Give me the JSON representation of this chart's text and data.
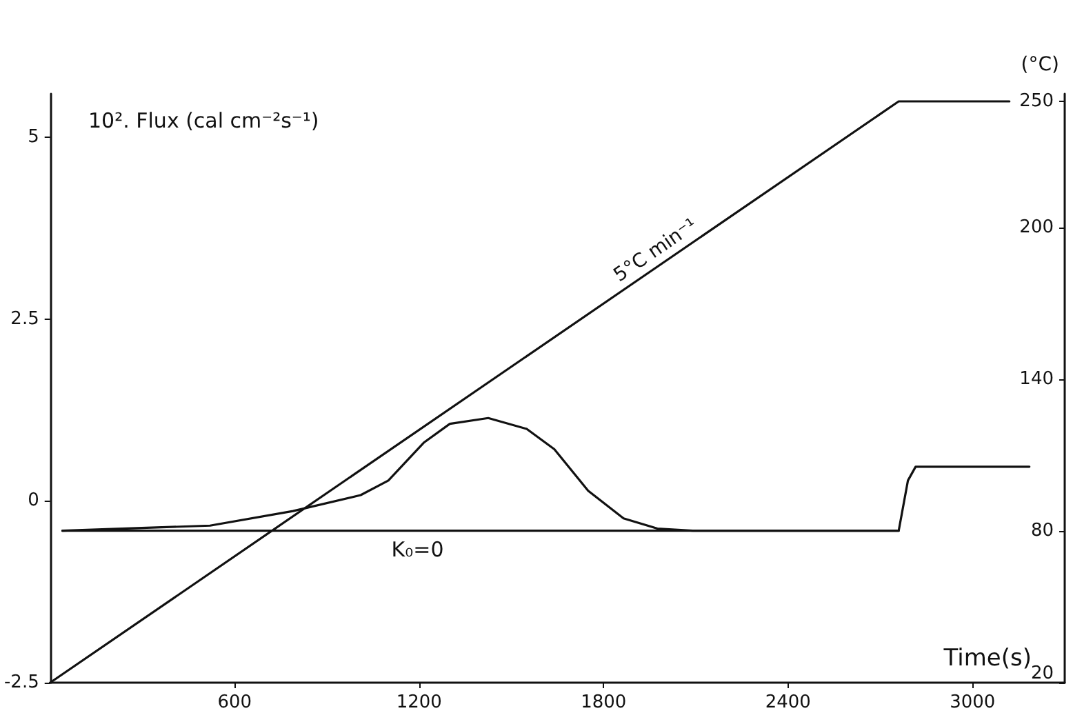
{
  "chart_data": {
    "type": "line",
    "xlabel": "Time(s)",
    "ylabel": "10². Flux (cal cm⁻²s⁻¹)",
    "y2label": "(°C)",
    "xlim": [
      0,
      3300
    ],
    "xticks": [
      600,
      1200,
      1800,
      2400,
      3000
    ],
    "ylim": [
      -2.5,
      5.6
    ],
    "yticks": [
      -2.5,
      0,
      2.5,
      5
    ],
    "y2lim": [
      20,
      253
    ],
    "y2ticks": [
      20,
      80,
      140,
      200,
      250
    ],
    "marker": "none",
    "line_style": "solid",
    "grid": false,
    "series": [
      {
        "color": "#111111",
        "x": [
          40,
          520,
          790,
          1010,
          1100,
          1215,
          1300,
          1425,
          1550,
          1640,
          1750,
          1865,
          1975,
          2090,
          2760,
          2790,
          2815,
          3185
        ],
        "values": [
          -0.41,
          -0.34,
          -0.14,
          0.08,
          0.28,
          0.8,
          1.06,
          1.14,
          0.99,
          0.71,
          0.14,
          -0.24,
          -0.38,
          -0.41,
          -0.41,
          0.28,
          0.47,
          0.47
        ]
      },
      {
        "color": "#111111",
        "x": [
          40,
          2760
        ],
        "values": [
          -0.41,
          -0.41
        ]
      },
      {
        "color": "#111111",
        "axis": "y2",
        "x": [
          0,
          2760,
          3120
        ],
        "values": [
          20,
          250,
          250
        ]
      }
    ],
    "annotations": [
      {
        "text": "K₀=0",
        "x": 1110,
        "y": -0.41
      },
      "5°C min⁻¹"
    ]
  }
}
